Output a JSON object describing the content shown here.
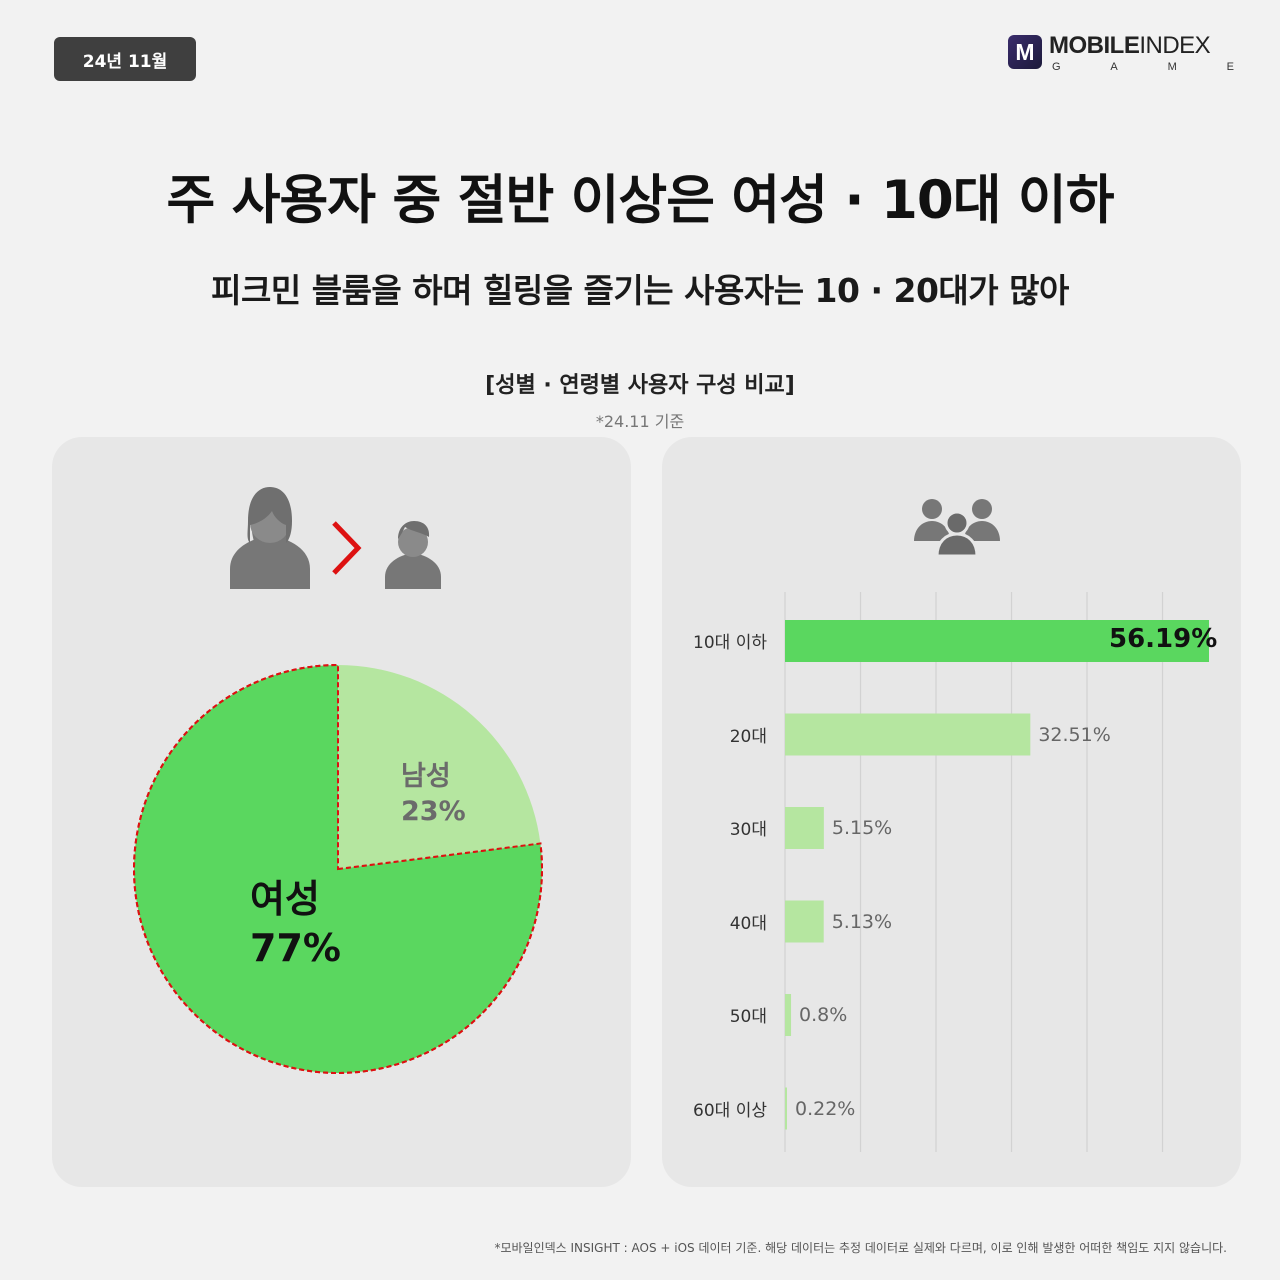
{
  "badge": "24년 11월",
  "logo": {
    "mark": "M",
    "brand_bold": "MOBILE",
    "brand_light": "INDEX",
    "sub_letters": [
      "G",
      "A",
      "M",
      "E"
    ]
  },
  "headline": "주 사용자 중 절반 이상은 여성 · 10대 이하",
  "subhead": "피크민 블룸을 하며 힐링을 즐기는 사용자는 10 · 20대가 많아",
  "chart_title": "[성별 · 연령별 사용자 구성 비교]",
  "chart_note": "*24.11 기준",
  "icons": {
    "left": [
      "female-user-icon",
      "greater-than-icon",
      "male-user-icon"
    ],
    "right": [
      "user-group-icon"
    ]
  },
  "colors": {
    "primary_green": "#5ad75f",
    "light_green": "#b5e6a0",
    "accent_red": "#dd1111",
    "icon_gray": "#777777"
  },
  "chart_data": [
    {
      "type": "pie",
      "slices": [
        {
          "label": "여성",
          "value": 77,
          "display": "77%",
          "color": "#5ad75f",
          "highlight": true
        },
        {
          "label": "남성",
          "value": 23,
          "display": "23%",
          "color": "#b5e6a0",
          "highlight": false
        }
      ]
    },
    {
      "type": "bar",
      "orientation": "horizontal",
      "categories": [
        "10대 이하",
        "20대",
        "30대",
        "40대",
        "50대",
        "60대 이상"
      ],
      "values": [
        56.19,
        32.51,
        5.15,
        5.13,
        0.8,
        0.22
      ],
      "value_labels": [
        "56.19%",
        "32.51%",
        "5.15%",
        "5.13%",
        "0.8%",
        "0.22%"
      ],
      "xlim": [
        0,
        56.19
      ],
      "grid": true
    }
  ],
  "footnote": "*모바일인덱스 INSIGHT : AOS + iOS 데이터 기준. 해당 데이터는 추정 데이터로 실제와 다르며, 이로 인해 발생한 어떠한 책임도 지지 않습니다."
}
